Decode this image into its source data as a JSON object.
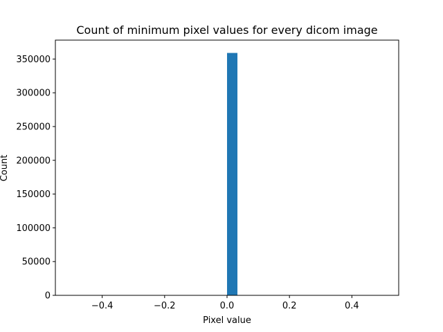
{
  "chart_data": {
    "type": "bar",
    "title": "Count of minimum pixel values for every dicom image",
    "xlabel": "Pixel value",
    "ylabel": "Count",
    "xlim": [
      -0.55,
      0.55
    ],
    "ylim": [
      0,
      378000
    ],
    "x_ticks": [
      -0.4,
      -0.2,
      0.0,
      0.2,
      0.4
    ],
    "x_tick_labels": [
      "−0.4",
      "−0.2",
      "0.0",
      "0.2",
      "0.4"
    ],
    "y_ticks": [
      0,
      50000,
      100000,
      150000,
      200000,
      250000,
      300000,
      350000
    ],
    "y_tick_labels": [
      "0",
      "50000",
      "100000",
      "150000",
      "200000",
      "250000",
      "300000",
      "350000"
    ],
    "bins": [
      {
        "x_start": 0.0,
        "x_end": 0.0333,
        "count": 359000
      }
    ],
    "bar_color": "#1f77b4",
    "grid": false,
    "legend": "none"
  }
}
